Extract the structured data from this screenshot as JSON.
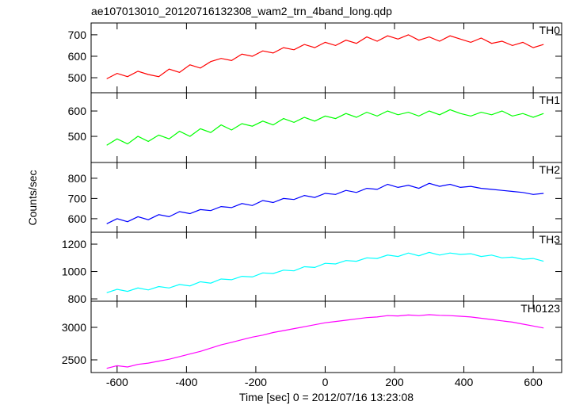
{
  "chart_data": [
    {
      "type": "line",
      "title": "ae107013010_20120716132308_wam2_trn_4band_long.qdp",
      "label": "TH0",
      "color": "#ff0000",
      "x": [
        -630,
        -600,
        -570,
        -540,
        -510,
        -480,
        -450,
        -420,
        -390,
        -360,
        -330,
        -300,
        -270,
        -240,
        -210,
        -180,
        -150,
        -120,
        -90,
        -60,
        -30,
        0,
        30,
        60,
        90,
        120,
        150,
        180,
        210,
        240,
        270,
        300,
        330,
        360,
        390,
        420,
        450,
        480,
        510,
        540,
        570,
        600,
        630
      ],
      "values": [
        495,
        520,
        505,
        530,
        515,
        505,
        540,
        525,
        560,
        545,
        575,
        590,
        580,
        610,
        600,
        625,
        615,
        640,
        630,
        655,
        640,
        665,
        650,
        675,
        660,
        690,
        670,
        695,
        680,
        700,
        675,
        690,
        670,
        695,
        680,
        665,
        685,
        660,
        670,
        650,
        665,
        640,
        655
      ],
      "xlim": [
        -675,
        682
      ],
      "xticks": [
        -600,
        -400,
        -200,
        0,
        200,
        400,
        600
      ],
      "ylim": [
        430,
        755
      ],
      "yticks": [
        500,
        600,
        700
      ]
    },
    {
      "type": "line",
      "label": "TH1",
      "color": "#00ff00",
      "x": [
        -630,
        -600,
        -570,
        -540,
        -510,
        -480,
        -450,
        -420,
        -390,
        -360,
        -330,
        -300,
        -270,
        -240,
        -210,
        -180,
        -150,
        -120,
        -90,
        -60,
        -30,
        0,
        30,
        60,
        90,
        120,
        150,
        180,
        210,
        240,
        270,
        300,
        330,
        360,
        390,
        420,
        450,
        480,
        510,
        540,
        570,
        600,
        630
      ],
      "values": [
        465,
        490,
        470,
        500,
        480,
        505,
        490,
        520,
        500,
        530,
        515,
        545,
        525,
        550,
        540,
        560,
        545,
        570,
        555,
        575,
        560,
        580,
        570,
        590,
        575,
        595,
        580,
        600,
        585,
        595,
        580,
        600,
        585,
        605,
        590,
        580,
        595,
        585,
        600,
        580,
        590,
        575,
        590
      ],
      "xlim": [
        -675,
        682
      ],
      "xticks": [
        -600,
        -400,
        -200,
        0,
        200,
        400,
        600
      ],
      "ylim": [
        397,
        672
      ],
      "yticks": [
        500,
        600
      ]
    },
    {
      "type": "line",
      "label": "TH2",
      "ylabel": "Counts/sec",
      "color": "#0000ff",
      "x": [
        -630,
        -600,
        -570,
        -540,
        -510,
        -480,
        -450,
        -420,
        -390,
        -360,
        -330,
        -300,
        -270,
        -240,
        -210,
        -180,
        -150,
        -120,
        -90,
        -60,
        -30,
        0,
        30,
        60,
        90,
        120,
        150,
        180,
        210,
        240,
        270,
        300,
        330,
        360,
        390,
        420,
        450,
        480,
        510,
        540,
        570,
        600,
        630
      ],
      "values": [
        575,
        600,
        585,
        610,
        595,
        620,
        610,
        635,
        625,
        645,
        640,
        660,
        655,
        675,
        665,
        690,
        680,
        700,
        695,
        715,
        705,
        725,
        720,
        740,
        730,
        750,
        745,
        770,
        755,
        765,
        750,
        775,
        760,
        770,
        755,
        760,
        750,
        745,
        740,
        735,
        730,
        720,
        725
      ],
      "xlim": [
        -675,
        682
      ],
      "xticks": [
        -600,
        -400,
        -200,
        0,
        200,
        400,
        600
      ],
      "ylim": [
        533,
        878
      ],
      "yticks": [
        600,
        700,
        800
      ]
    },
    {
      "type": "line",
      "label": "TH3",
      "color": "#00ffff",
      "x": [
        -630,
        -600,
        -570,
        -540,
        -510,
        -480,
        -450,
        -420,
        -390,
        -360,
        -330,
        -300,
        -270,
        -240,
        -210,
        -180,
        -150,
        -120,
        -90,
        -60,
        -30,
        0,
        30,
        60,
        90,
        120,
        150,
        180,
        210,
        240,
        270,
        300,
        330,
        360,
        390,
        420,
        450,
        480,
        510,
        540,
        570,
        600,
        630
      ],
      "values": [
        845,
        870,
        855,
        880,
        865,
        890,
        880,
        905,
        895,
        925,
        915,
        945,
        940,
        965,
        960,
        990,
        985,
        1010,
        1005,
        1035,
        1030,
        1060,
        1055,
        1080,
        1075,
        1100,
        1095,
        1120,
        1110,
        1135,
        1115,
        1140,
        1120,
        1135,
        1125,
        1130,
        1110,
        1120,
        1100,
        1105,
        1090,
        1095,
        1075
      ],
      "xlim": [
        -675,
        682
      ],
      "xticks": [
        -600,
        -400,
        -200,
        0,
        200,
        400,
        600
      ],
      "ylim": [
        783,
        1287
      ],
      "yticks": [
        800,
        1000,
        1200
      ]
    },
    {
      "type": "line",
      "label": "TH0123",
      "xlabel": "Time [sec] 0 = 2012/07/16 13:23:08",
      "color": "#ff00ff",
      "x": [
        -630,
        -600,
        -570,
        -540,
        -510,
        -480,
        -450,
        -420,
        -390,
        -360,
        -330,
        -300,
        -270,
        -240,
        -210,
        -180,
        -150,
        -120,
        -90,
        -60,
        -30,
        0,
        30,
        60,
        90,
        120,
        150,
        180,
        210,
        240,
        270,
        300,
        330,
        360,
        390,
        420,
        450,
        480,
        510,
        540,
        570,
        600,
        630
      ],
      "values": [
        2370,
        2410,
        2390,
        2430,
        2450,
        2480,
        2510,
        2550,
        2590,
        2630,
        2680,
        2730,
        2770,
        2810,
        2850,
        2880,
        2920,
        2950,
        2980,
        3010,
        3040,
        3070,
        3090,
        3110,
        3130,
        3150,
        3160,
        3180,
        3175,
        3190,
        3180,
        3195,
        3185,
        3180,
        3170,
        3160,
        3140,
        3120,
        3100,
        3080,
        3050,
        3020,
        2990
      ],
      "xlim": [
        -675,
        682
      ],
      "xticks": [
        -600,
        -400,
        -200,
        0,
        200,
        400,
        600
      ],
      "ylim": [
        2305,
        3402
      ],
      "yticks": [
        2500,
        3000
      ]
    }
  ]
}
